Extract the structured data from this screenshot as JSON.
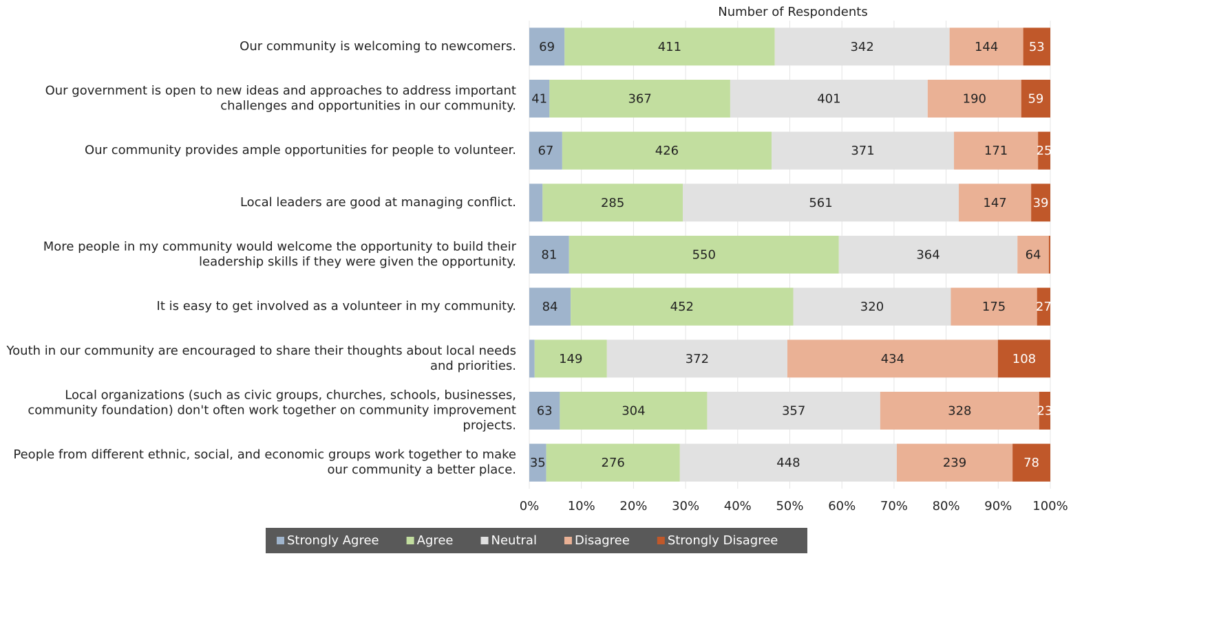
{
  "chart_data": {
    "type": "bar",
    "orientation": "horizontal",
    "stacked": "percent",
    "xlabel": "Number of Respondents",
    "categories": [
      "Our community is welcoming to newcomers.",
      "Our government is open to new ideas and approaches to address important challenges and opportunities in our community.",
      "Our community provides ample opportunities for people to volunteer.",
      "Local leaders are good at managing conflict.",
      "More people in my community would welcome the opportunity to build their leadership skills if they were given the opportunity.",
      "It is easy to get involved as a volunteer in my community.",
      "Youth in our community are encouraged to share their thoughts about local needs and priorities.",
      "Local organizations (such as civic groups, churches, schools, businesses, community foundation) don't often work together on community improvement projects.",
      "People from different ethnic, social, and economic groups work together to make our community a better place."
    ],
    "series": [
      {
        "name": "Strongly Agree",
        "color": "#9fb4cc",
        "values": [
          69,
          41,
          67,
          27,
          81,
          84,
          11,
          63,
          35
        ],
        "value_labels": [
          "69",
          "41",
          "67",
          null,
          "81",
          "84",
          null,
          "63",
          "35"
        ]
      },
      {
        "name": "Agree",
        "color": "#c2de9f",
        "values": [
          411,
          367,
          426,
          285,
          550,
          452,
          149,
          304,
          276
        ],
        "value_labels": [
          "411",
          "367",
          "426",
          "285",
          "550",
          "452",
          "149",
          "304",
          "276"
        ]
      },
      {
        "name": "Neutral",
        "color": "#e1e1e1",
        "values": [
          342,
          401,
          371,
          561,
          364,
          320,
          372,
          357,
          448
        ],
        "value_labels": [
          "342",
          "401",
          "371",
          "561",
          "364",
          "320",
          "372",
          "357",
          "448"
        ]
      },
      {
        "name": "Disagree",
        "color": "#eab195",
        "values": [
          144,
          190,
          171,
          147,
          64,
          175,
          434,
          328,
          239
        ],
        "value_labels": [
          "144",
          "190",
          "171",
          "147",
          "64",
          "175",
          "434",
          "328",
          "239"
        ]
      },
      {
        "name": "Strongly Disagree",
        "color": "#c0582a",
        "values": [
          53,
          59,
          25,
          39,
          3,
          27,
          108,
          23,
          78
        ],
        "value_labels": [
          "53",
          "59",
          "25",
          "39",
          null,
          "27",
          "108",
          "23",
          "78"
        ]
      }
    ],
    "xlim": [
      0,
      100
    ],
    "xticks": [
      {
        "value": 0,
        "label": "0%"
      },
      {
        "value": 10,
        "label": "10%"
      },
      {
        "value": 20,
        "label": "20%"
      },
      {
        "value": 30,
        "label": "30%"
      },
      {
        "value": 40,
        "label": "40%"
      },
      {
        "value": 50,
        "label": "50%"
      },
      {
        "value": 60,
        "label": "60%"
      },
      {
        "value": 70,
        "label": "70%"
      },
      {
        "value": 80,
        "label": "80%"
      },
      {
        "value": 90,
        "label": "90%"
      },
      {
        "value": 100,
        "label": "100%"
      }
    ],
    "grid": true,
    "legend": "bottom"
  }
}
